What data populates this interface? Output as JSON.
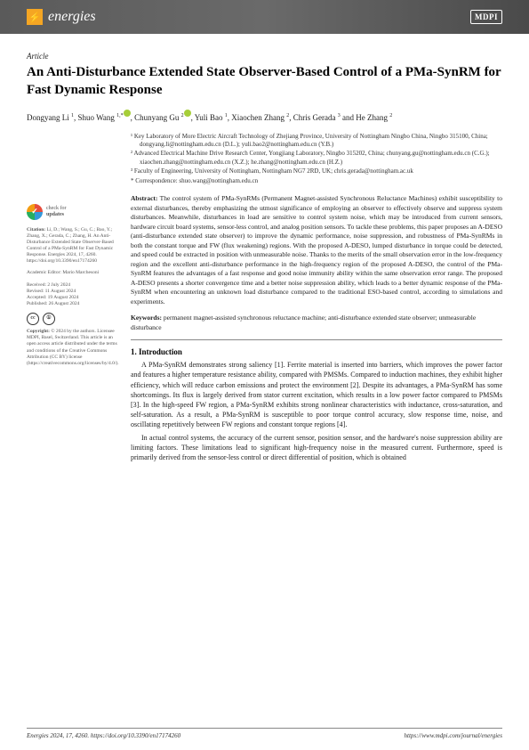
{
  "journal": {
    "name": "energies",
    "publisher": "MDPI"
  },
  "article_type": "Article",
  "title": "An Anti-Disturbance Extended State Observer-Based Control of a PMa-SynRM for Fast Dynamic Response",
  "authors_html": "Dongyang Li <sup>1</sup>, Shuo Wang <sup>1,*</sup>, Chunyang Gu <sup>2</sup>, Yuli Bao <sup>1</sup>, Xiaochen Zhang <sup>2</sup>, Chris Gerada <sup>3</sup> and He Zhang <sup>2</sup>",
  "affiliations": [
    "¹ Key Laboratory of More Electric Aircraft Technology of Zhejiang Province, University of Nottingham Ningbo China, Ningbo 315100, China; dongyang.li@nottingham.edu.cn (D.L.); yuli.bao2@nottingham.edu.cn (Y.B.)",
    "² Advanced Electrical Machine Drive Research Center, Yongjiang Laboratory, Ningbo 315202, China; chunyang.gu@nottingham.edu.cn (C.G.); xiaochen.zhang@nottingham.edu.cn (X.Z.); he.zhang@nottingham.edu.cn (H.Z.)",
    "³ Faculty of Engineering, University of Nottingham, Nottingham NG7 2RD, UK; chris.gerada@nottingham.ac.uk",
    "* Correspondence: shuo.wang@nottingham.edu.cn"
  ],
  "abstract_label": "Abstract:",
  "abstract": "The control system of PMa-SynRMs (Permanent Magnet-assisted Synchronous Reluctance Machines) exhibit susceptibility to external disturbances, thereby emphasizing the utmost significance of employing an observer to effectively observe and suppress system disturbances. Meanwhile, disturbances in load are sensitive to control system noise, which may be introduced from current sensors, hardware circuit board systems, sensor-less control, and analog position sensors. To tackle these problems, this paper proposes an A-DESO (anti-disturbance extended state observer) to improve the dynamic performance, noise suppression, and robustness of PMa-SynRMs in both the constant torque and FW (flux weakening) regions. With the proposed A-DESO, lumped disturbance in torque could be detected, and speed could be extracted in position with unmeasurable noise. Thanks to the merits of the small observation error in the low-frequency region and the excellent anti-disturbance performance in the high-frequency region of the proposed A-DESO, the control of the PMa-SynRM features the advantages of a fast response and good noise immunity ability within the same observation error range. The proposed A-DESO presents a shorter convergence time and a better noise suppression ability, which leads to a better dynamic response of the PMa-SynRM when encountering an unknown load disturbance compared to the traditional ESO-based control, according to simulations and experiments.",
  "keywords_label": "Keywords:",
  "keywords": "permanent magnet-assisted synchronous reluctance machine; anti-disturbance extended state observer; unmeasurable disturbance",
  "intro_heading": "1. Introduction",
  "intro_p1": "A PMa-SynRM demonstrates strong saliency [1]. Ferrite material is inserted into barriers, which improves the power factor and features a higher temperature resistance ability, compared with PMSMs. Compared to induction machines, they exhibit higher efficiency, which will reduce carbon emissions and protect the environment [2]. Despite its advantages, a PMa-SynRM has some shortcomings. Its flux is largely derived from stator current excitation, which results in a low power factor compared to PMSMs [3]. In the high-speed FW region, a PMa-SynRM exhibits strong nonlinear characteristics with inductance, cross-saturation, and self-saturation. As a result, a PMa-SynRM is susceptible to poor torque control accuracy, slow response time, noise, and oscillating repetitively between FW regions and constant torque regions [4].",
  "intro_p2": "In actual control systems, the accuracy of the current sensor, position sensor, and the hardware's noise suppression ability are limiting factors. These limitations lead to significant high-frequency noise in the measured current. Furthermore, speed is primarily derived from the sensor-less control or direct differential of position, which is obtained",
  "sidebar": {
    "check_updates": "check for updates",
    "citation_label": "Citation:",
    "citation": "Li, D.; Wang, S.; Gu, C.; Bao, Y.; Zhang, X.; Gerada, C.; Zhang, H. An Anti-Disturbance Extended State Observer-Based Control of a PMa-SynRM for Fast Dynamic Response. Energies 2024, 17, 4260. https://doi.org/10.3390/en17174260",
    "editor": "Academic Editor: Mario Marchesoni",
    "received": "Received: 2 July 2024",
    "revised": "Revised: 11 August 2024",
    "accepted": "Accepted: 19 August 2024",
    "published": "Published: 26 August 2024",
    "copyright_label": "Copyright:",
    "copyright": "© 2024 by the authors. Licensee MDPI, Basel, Switzerland. This article is an open access article distributed under the terms and conditions of the Creative Commons Attribution (CC BY) license (https://creativecommons.org/licenses/by/4.0/)."
  },
  "footer": {
    "left": "Energies 2024, 17, 4260. https://doi.org/10.3390/en17174260",
    "right": "https://www.mdpi.com/journal/energies"
  },
  "colors": {
    "header_gradient_from": "#5a5a5a",
    "header_gradient_to": "#4a4a4a",
    "logo_bg": "#f5a623",
    "link": "#0066cc",
    "orcid": "#a6ce39"
  }
}
